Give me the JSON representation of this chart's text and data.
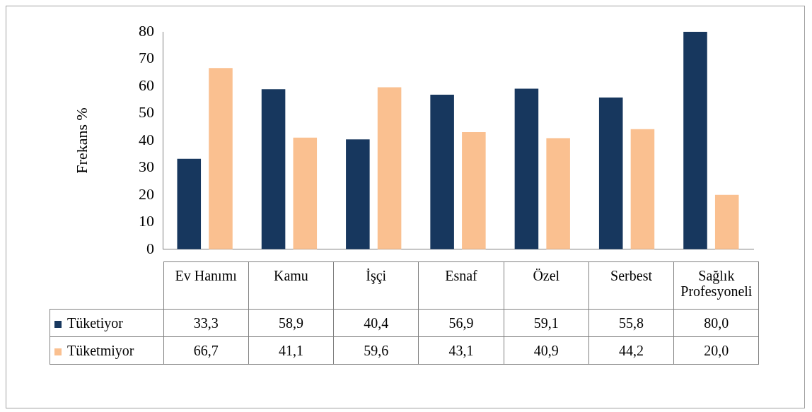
{
  "chart_data": {
    "type": "bar",
    "ylabel": "Frekans %",
    "categories": [
      "Ev Hanımı",
      "Kamu",
      "İşçi",
      "Esnaf",
      "Özel",
      "Serbest",
      "Sağlık Profesyoneli"
    ],
    "series": [
      {
        "name": "Tüketiyor",
        "color": "#17375e",
        "values": [
          33.3,
          58.9,
          40.4,
          56.9,
          59.1,
          55.8,
          80.0
        ],
        "value_labels": [
          "33,3",
          "58,9",
          "40,4",
          "56,9",
          "59,1",
          "55,8",
          "80,0"
        ]
      },
      {
        "name": "Tüketmiyor",
        "color": "#fac090",
        "values": [
          66.7,
          41.1,
          59.6,
          43.1,
          40.9,
          44.2,
          20.0
        ],
        "value_labels": [
          "66,7",
          "41,1",
          "59,6",
          "43,1",
          "40,9",
          "44,2",
          "20,0"
        ]
      }
    ],
    "ylim": [
      0,
      80
    ],
    "yticks": [
      0,
      10,
      20,
      30,
      40,
      50,
      60,
      70,
      80
    ],
    "grid": false,
    "legend": "bottom"
  }
}
